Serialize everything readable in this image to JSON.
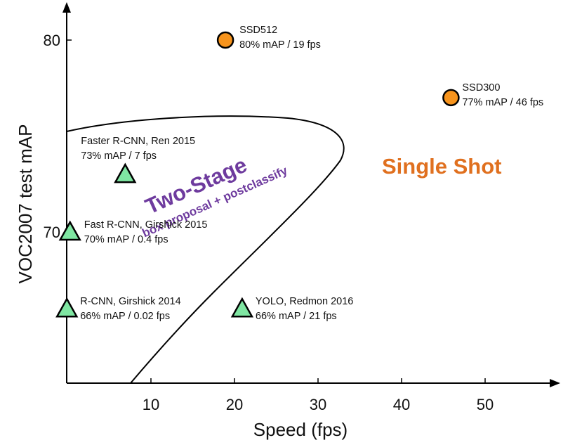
{
  "chart_data": {
    "type": "scatter",
    "xlabel": "Speed (fps)",
    "ylabel": "VOC2007 test mAP",
    "xlim": [
      0,
      55
    ],
    "ylim": [
      63,
      80.8
    ],
    "x_ticks": [
      "10",
      "20",
      "30",
      "40",
      "50"
    ],
    "y_ticks": [
      "70",
      "80"
    ],
    "grid": false,
    "points": [
      {
        "name": "SSD512",
        "line1": "SSD512",
        "line2": "80% mAP / 19 fps",
        "x": 19,
        "y": 80,
        "marker": "circle",
        "color": "#f7941d"
      },
      {
        "name": "SSD300",
        "line1": "SSD300",
        "line2": "77% mAP / 46 fps",
        "x": 46,
        "y": 77,
        "marker": "circle",
        "color": "#f7941d"
      },
      {
        "name": "Faster R-CNN",
        "line1": "Faster R-CNN, Ren 2015",
        "line2": "73% mAP / 7 fps",
        "x": 7,
        "y": 73,
        "marker": "triangle",
        "color": "#7fe6a2"
      },
      {
        "name": "Fast R-CNN",
        "line1": "Fast R-CNN, Girshick 2015",
        "line2": "70% mAP / 0.4 fps",
        "x": 0.4,
        "y": 70,
        "marker": "triangle",
        "color": "#7fe6a2"
      },
      {
        "name": "R-CNN",
        "line1": "R-CNN, Girshick 2014",
        "line2": "66% mAP / 0.02 fps",
        "x": 0.02,
        "y": 66,
        "marker": "triangle",
        "color": "#7fe6a2"
      },
      {
        "name": "YOLO",
        "line1": "YOLO, Redmon 2016",
        "line2": "66% mAP / 21 fps",
        "x": 21,
        "y": 66,
        "marker": "triangle",
        "color": "#7fe6a2"
      }
    ],
    "regions": {
      "two_stage": {
        "title": "Two-Stage",
        "subtitle": "box proposal + postclassify",
        "color": "#6e3b9e"
      },
      "single_shot": {
        "title": "Single Shot",
        "color": "#e0701f"
      }
    }
  }
}
